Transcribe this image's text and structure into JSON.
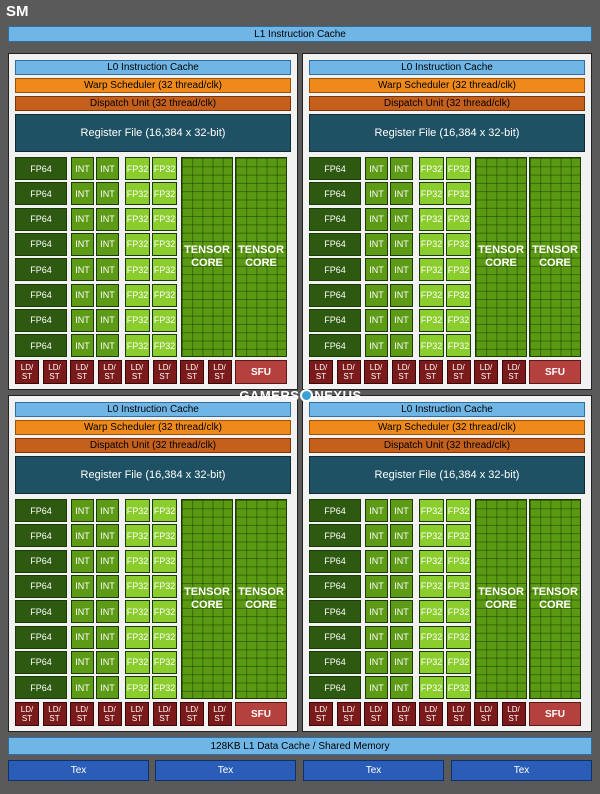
{
  "sm_title": "SM",
  "l1_instruction_cache": "L1 Instruction Cache",
  "quadrant": {
    "l0_cache": "L0 Instruction Cache",
    "warp_scheduler": "Warp Scheduler (32 thread/clk)",
    "dispatch_unit": "Dispatch Unit (32 thread/clk)",
    "register_file": "Register File (16,384 x 32-bit)",
    "fp64": "FP64",
    "int": "INT",
    "fp32": "FP32",
    "tensor_core": "TENSOR CORE",
    "ld_st": "LD/ ST",
    "sfu": "SFU"
  },
  "quadrant_count": 4,
  "rows_per_quadrant": 8,
  "ld_st_per_quadrant": 8,
  "l1_data_cache": "128KB L1 Data Cache / Shared Memory",
  "tex_units": [
    "Tex",
    "Tex",
    "Tex",
    "Tex"
  ],
  "watermark": {
    "left": "GAMERS",
    "right": "NEXUS"
  },
  "colors": {
    "l0_cache": "#6fb6e6",
    "warp_scheduler": "#ef8a1a",
    "dispatch_unit": "#c4601c",
    "register_file": "#1e5164",
    "fp64": "#2d5a10",
    "int": "#5d9a16",
    "fp32": "#8acd2c",
    "tensor_core": "#5a9a12",
    "ld_st": "#7a1a1a",
    "sfu": "#b4413e",
    "tex": "#2a5db8"
  }
}
